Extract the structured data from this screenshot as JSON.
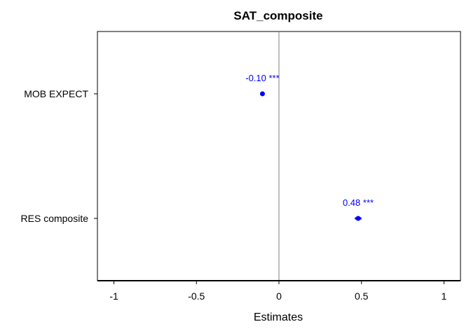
{
  "chart_data": {
    "type": "scatter",
    "title": "SAT_composite",
    "xlabel": "Estimates",
    "ylabel": "",
    "xlim": [
      -1.1,
      1.1
    ],
    "x_ticks": [
      -1,
      -0.5,
      0,
      0.5,
      1
    ],
    "x_tick_labels": [
      "-1",
      "-0.5",
      "0",
      "0.5",
      "1"
    ],
    "reference_line_x": 0,
    "grid": false,
    "legend": "none",
    "categories": [
      "MOB EXPECT",
      "RES composite"
    ],
    "points": [
      {
        "term": "MOB EXPECT",
        "estimate": -0.1,
        "conf_low": -0.11,
        "conf_high": -0.09,
        "label": "-0.10 ***"
      },
      {
        "term": "RES composite",
        "estimate": 0.48,
        "conf_low": 0.46,
        "conf_high": 0.5,
        "label": "0.48 ***"
      }
    ],
    "colors": {
      "points": "#0000ff",
      "axes": "#000000",
      "reference": "#808080"
    }
  }
}
